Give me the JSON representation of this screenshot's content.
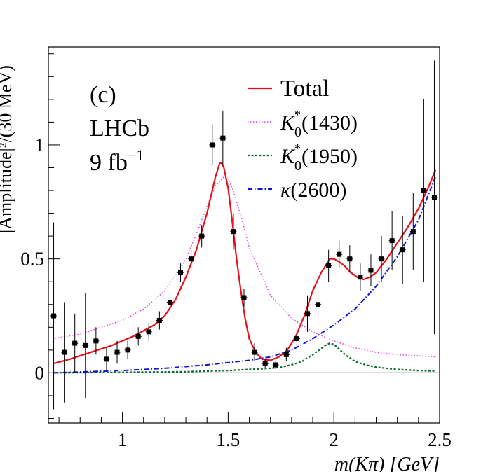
{
  "chart_data": {
    "type": "scatter",
    "panel_label": "(c)",
    "experiment": "LHCb",
    "luminosity": "9 fb",
    "luminosity_exp": "−1",
    "ylabel": "|Amplitude|²/(30 MeV)",
    "xlabel": "m(Kπ) [GeV]",
    "xlim": [
      0.65,
      2.5
    ],
    "ylim": [
      -0.22,
      1.43
    ],
    "x_ticks": [
      1,
      1.5,
      2,
      2.5
    ],
    "x_tick_labels": [
      "1",
      "1.5",
      "2",
      "2.5"
    ],
    "y_ticks": [
      0,
      0.5,
      1
    ],
    "y_tick_labels": [
      "0",
      "0.5",
      "1"
    ],
    "legend": {
      "position": "top-right",
      "entries": [
        {
          "key": "total",
          "label": "Total",
          "color": "#e8101a",
          "style": "solid"
        },
        {
          "key": "k1430",
          "base": "K",
          "sup": "*",
          "sub": "0",
          "rest": "(1430)",
          "color": "#e040e0",
          "style": "dotted"
        },
        {
          "key": "k1950",
          "base": "K",
          "sup": "*",
          "sub": "0",
          "rest": "(1950)",
          "color": "#0a6b2e",
          "style": "dashed"
        },
        {
          "key": "kappa",
          "base": "κ",
          "sup": "",
          "sub": "",
          "rest": "(2600)",
          "color": "#1010d8",
          "style": "dashdot"
        }
      ]
    },
    "data_points": [
      {
        "x": 0.675,
        "y": 0.25,
        "yerr": 0.41,
        "xerr": 0.015
      },
      {
        "x": 0.725,
        "y": 0.09,
        "yerr": 0.22,
        "xerr": 0.015
      },
      {
        "x": 0.775,
        "y": 0.13,
        "yerr": 0.13,
        "xerr": 0.015
      },
      {
        "x": 0.825,
        "y": 0.12,
        "yerr": 0.23,
        "xerr": 0.015
      },
      {
        "x": 0.875,
        "y": 0.14,
        "yerr": 0.06,
        "xerr": 0.015
      },
      {
        "x": 0.925,
        "y": 0.06,
        "yerr": 0.05,
        "xerr": 0.015
      },
      {
        "x": 0.975,
        "y": 0.09,
        "yerr": 0.05,
        "xerr": 0.015
      },
      {
        "x": 1.025,
        "y": 0.1,
        "yerr": 0.04,
        "xerr": 0.015
      },
      {
        "x": 1.075,
        "y": 0.16,
        "yerr": 0.04,
        "xerr": 0.015
      },
      {
        "x": 1.125,
        "y": 0.18,
        "yerr": 0.04,
        "xerr": 0.015
      },
      {
        "x": 1.175,
        "y": 0.23,
        "yerr": 0.04,
        "xerr": 0.015
      },
      {
        "x": 1.225,
        "y": 0.31,
        "yerr": 0.04,
        "xerr": 0.015
      },
      {
        "x": 1.275,
        "y": 0.44,
        "yerr": 0.04,
        "xerr": 0.015
      },
      {
        "x": 1.325,
        "y": 0.5,
        "yerr": 0.04,
        "xerr": 0.015
      },
      {
        "x": 1.375,
        "y": 0.6,
        "yerr": 0.05,
        "xerr": 0.015
      },
      {
        "x": 1.425,
        "y": 1.0,
        "yerr": 0.09,
        "xerr": 0.015
      },
      {
        "x": 1.475,
        "y": 1.03,
        "yerr": 0.12,
        "xerr": 0.015
      },
      {
        "x": 1.525,
        "y": 0.62,
        "yerr": 0.08,
        "xerr": 0.015
      },
      {
        "x": 1.575,
        "y": 0.33,
        "yerr": 0.04,
        "xerr": 0.015
      },
      {
        "x": 1.625,
        "y": 0.09,
        "yerr": 0.04,
        "xerr": 0.015
      },
      {
        "x": 1.675,
        "y": 0.04,
        "yerr": 0.02,
        "xerr": 0.015
      },
      {
        "x": 1.725,
        "y": 0.035,
        "yerr": 0.02,
        "xerr": 0.015
      },
      {
        "x": 1.775,
        "y": 0.08,
        "yerr": 0.03,
        "xerr": 0.015
      },
      {
        "x": 1.825,
        "y": 0.15,
        "yerr": 0.04,
        "xerr": 0.015
      },
      {
        "x": 1.875,
        "y": 0.26,
        "yerr": 0.08,
        "xerr": 0.015
      },
      {
        "x": 1.925,
        "y": 0.3,
        "yerr": 0.06,
        "xerr": 0.015
      },
      {
        "x": 1.975,
        "y": 0.47,
        "yerr": 0.07,
        "xerr": 0.015
      },
      {
        "x": 2.025,
        "y": 0.52,
        "yerr": 0.06,
        "xerr": 0.015
      },
      {
        "x": 2.075,
        "y": 0.5,
        "yerr": 0.06,
        "xerr": 0.015
      },
      {
        "x": 2.125,
        "y": 0.42,
        "yerr": 0.06,
        "xerr": 0.015
      },
      {
        "x": 2.175,
        "y": 0.45,
        "yerr": 0.07,
        "xerr": 0.015
      },
      {
        "x": 2.225,
        "y": 0.5,
        "yerr": 0.1,
        "xerr": 0.015
      },
      {
        "x": 2.275,
        "y": 0.58,
        "yerr": 0.13,
        "xerr": 0.015
      },
      {
        "x": 2.325,
        "y": 0.54,
        "yerr": 0.15,
        "xerr": 0.015
      },
      {
        "x": 2.375,
        "y": 0.62,
        "yerr": 0.17,
        "xerr": 0.015
      },
      {
        "x": 2.425,
        "y": 0.8,
        "yerr": 0.4,
        "xerr": 0.015
      },
      {
        "x": 2.475,
        "y": 0.77,
        "yerr": 0.6,
        "xerr": 0.015
      }
    ],
    "curves": {
      "total": {
        "x": [
          0.67,
          0.75,
          0.85,
          0.95,
          1.05,
          1.15,
          1.2,
          1.25,
          1.3,
          1.35,
          1.4,
          1.42,
          1.44,
          1.46,
          1.47,
          1.48,
          1.5,
          1.52,
          1.54,
          1.56,
          1.58,
          1.6,
          1.63,
          1.66,
          1.7,
          1.74,
          1.78,
          1.82,
          1.86,
          1.9,
          1.94,
          1.98,
          2.0,
          2.02,
          2.05,
          2.08,
          2.11,
          2.14,
          2.17,
          2.2,
          2.25,
          2.3,
          2.35,
          2.4,
          2.45,
          2.48
        ],
        "y": [
          0.04,
          0.06,
          0.09,
          0.12,
          0.16,
          0.21,
          0.25,
          0.32,
          0.42,
          0.54,
          0.7,
          0.78,
          0.86,
          0.92,
          0.92,
          0.9,
          0.81,
          0.66,
          0.5,
          0.36,
          0.24,
          0.15,
          0.09,
          0.06,
          0.055,
          0.07,
          0.1,
          0.16,
          0.25,
          0.36,
          0.44,
          0.5,
          0.5,
          0.49,
          0.47,
          0.44,
          0.42,
          0.41,
          0.42,
          0.44,
          0.5,
          0.57,
          0.64,
          0.72,
          0.82,
          0.89
        ]
      },
      "k1430": {
        "x": [
          0.67,
          0.8,
          0.9,
          1.0,
          1.1,
          1.2,
          1.3,
          1.35,
          1.4,
          1.44,
          1.48,
          1.5,
          1.52,
          1.56,
          1.6,
          1.7,
          1.8,
          1.9,
          2.0,
          2.1,
          2.2,
          2.3,
          2.4,
          2.48
        ],
        "y": [
          0.15,
          0.17,
          0.2,
          0.23,
          0.28,
          0.36,
          0.5,
          0.61,
          0.73,
          0.82,
          0.86,
          0.85,
          0.81,
          0.69,
          0.55,
          0.34,
          0.24,
          0.18,
          0.14,
          0.11,
          0.09,
          0.08,
          0.075,
          0.07
        ]
      },
      "k1950": {
        "x": [
          0.67,
          1.0,
          1.3,
          1.5,
          1.6,
          1.7,
          1.75,
          1.8,
          1.85,
          1.9,
          1.93,
          1.96,
          1.98,
          2.0,
          2.03,
          2.06,
          2.1,
          2.15,
          2.2,
          2.3,
          2.4,
          2.48
        ],
        "y": [
          0.0,
          0.002,
          0.005,
          0.01,
          0.015,
          0.02,
          0.025,
          0.035,
          0.05,
          0.08,
          0.1,
          0.12,
          0.13,
          0.125,
          0.1,
          0.075,
          0.05,
          0.035,
          0.025,
          0.015,
          0.01,
          0.008
        ]
      },
      "kappa": {
        "x": [
          0.67,
          0.8,
          1.0,
          1.2,
          1.4,
          1.6,
          1.7,
          1.8,
          1.9,
          2.0,
          2.1,
          2.2,
          2.3,
          2.4,
          2.48
        ],
        "y": [
          0.0,
          0.004,
          0.01,
          0.02,
          0.035,
          0.055,
          0.07,
          0.1,
          0.15,
          0.21,
          0.28,
          0.38,
          0.51,
          0.67,
          0.86
        ]
      }
    }
  }
}
